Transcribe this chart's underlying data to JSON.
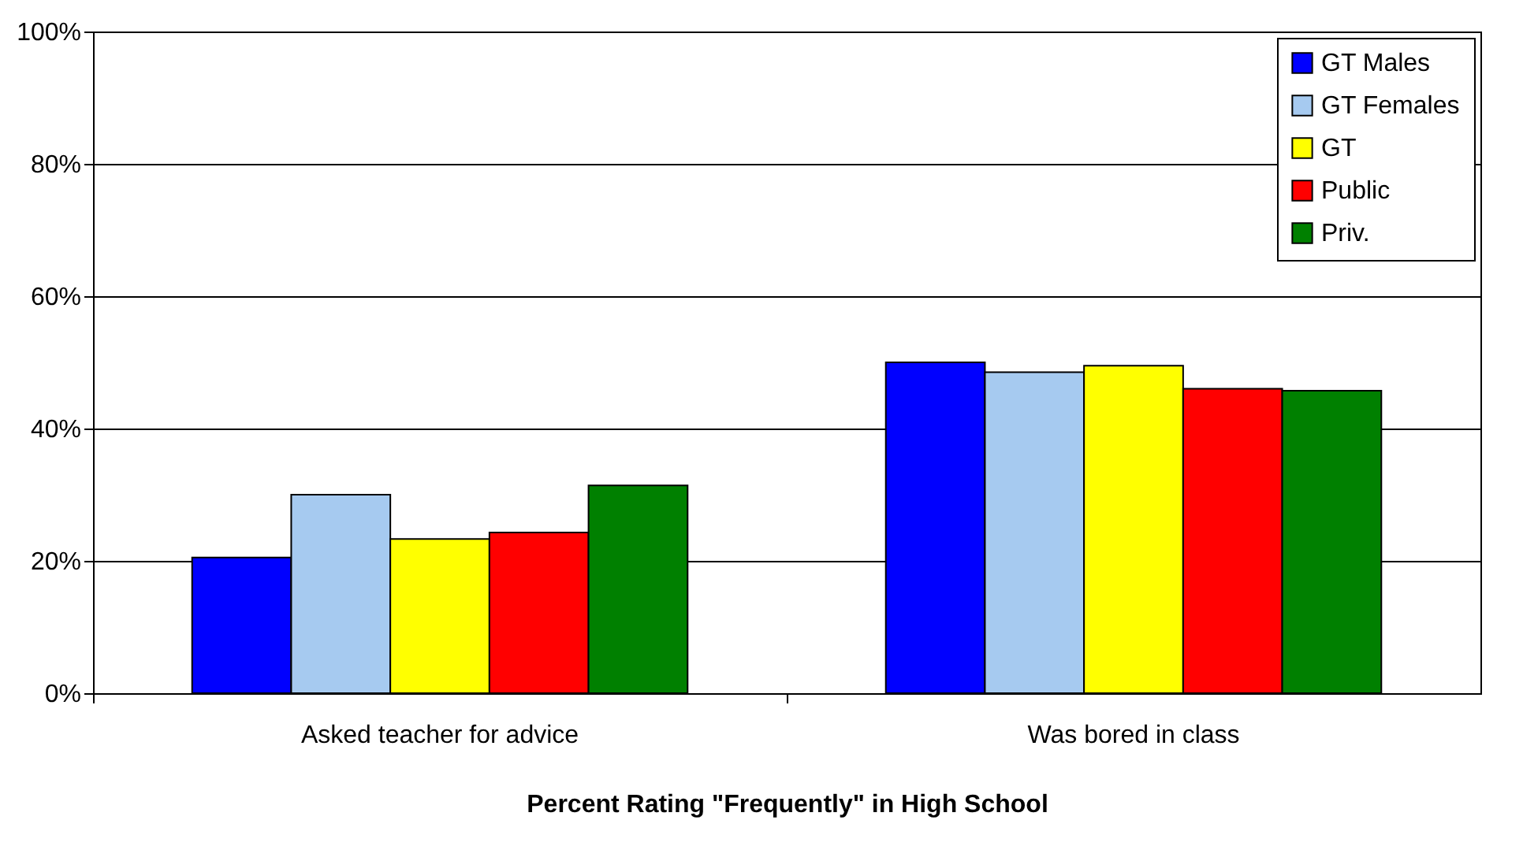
{
  "chart_data": {
    "type": "bar",
    "xlabel": "Percent Rating \"Frequently\" in High School",
    "categories": [
      "Asked teacher for advice",
      "Was bored in class"
    ],
    "series": [
      {
        "name": "GT Males",
        "color": "#0000ff",
        "values": [
          20.5,
          50
        ]
      },
      {
        "name": "GT Females",
        "color": "#a6caf0",
        "values": [
          30,
          48.5
        ]
      },
      {
        "name": "GT",
        "color": "#ffff00",
        "values": [
          23.3,
          49.5
        ]
      },
      {
        "name": "Public",
        "color": "#ff0000",
        "values": [
          24.3,
          46
        ]
      },
      {
        "name": "Priv.",
        "color": "#008000",
        "values": [
          31.4,
          45.7
        ]
      }
    ],
    "ylim": [
      0,
      100
    ],
    "yticks": [
      {
        "value": 0,
        "label": "0%"
      },
      {
        "value": 20,
        "label": "20%"
      },
      {
        "value": 40,
        "label": "40%"
      },
      {
        "value": 60,
        "label": "60%"
      },
      {
        "value": 80,
        "label": "80%"
      },
      {
        "value": 100,
        "label": "100%"
      }
    ],
    "grid": "y",
    "legend": "top right"
  }
}
